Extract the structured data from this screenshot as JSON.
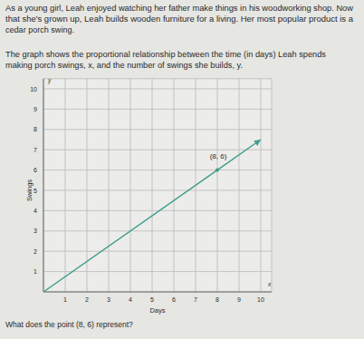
{
  "paragraphs": [
    [
      "As a young girl, Leah enjoyed watching her father make things in his woodworking shop. Now",
      "that she's grown up, Leah builds wooden furniture for a living. Her most popular product is a",
      "cedar porch swing."
    ],
    [
      "The graph shows the proportional relationship between the time (in days) Leah spends",
      "making porch swings, x, and the number of swings she builds, y."
    ]
  ],
  "question": "What does the point (8, 6) represent?",
  "chart_data": {
    "type": "line",
    "x_label": "Days",
    "y_label": "Swings",
    "x_variable": "x",
    "y_variable": "y",
    "series": [
      {
        "name": null,
        "color": "#3f9d8c",
        "x": [
          0,
          8,
          10
        ],
        "values": [
          0,
          6,
          7.5
        ],
        "line_style": "solid",
        "marker": "arrow"
      }
    ],
    "annotations": [
      {
        "text": "(8, 6)",
        "x": 8,
        "y": 6
      }
    ],
    "xlim": [
      0,
      10.5
    ],
    "ylim": [
      0,
      10.5
    ],
    "xticks": [
      1,
      2,
      3,
      4,
      5,
      6,
      7,
      8,
      9,
      10
    ],
    "yticks": [
      1,
      2,
      3,
      4,
      5,
      6,
      7,
      8,
      9,
      10
    ],
    "grid": true
  }
}
